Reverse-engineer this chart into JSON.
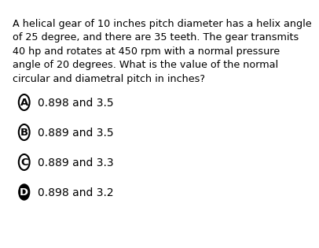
{
  "question_lines": [
    "A helical gear of 10 inches pitch diameter has a helix angle",
    "of 25 degree, and there are 35 teeth. The gear transmits",
    "40 hp and rotates at 450 rpm with a normal pressure",
    "angle of 20 degrees. What is the value of the normal",
    "circular and diametral pitch in inches?"
  ],
  "options": [
    {
      "label": "A",
      "text": "0.898 and 3.5",
      "filled": false
    },
    {
      "label": "B",
      "text": "0.889 and 3.5",
      "filled": false
    },
    {
      "label": "C",
      "text": "0.889 and 3.3",
      "filled": false
    },
    {
      "label": "D",
      "text": "0.898 and 3.2",
      "filled": true
    }
  ],
  "bg_color": "#ffffff",
  "text_color": "#000000",
  "circle_color": "#000000",
  "filled_circle_bg": "#000000",
  "filled_circle_text": "#ffffff",
  "question_fontsize": 9.2,
  "option_fontsize": 10.0,
  "label_fontsize": 9.5
}
